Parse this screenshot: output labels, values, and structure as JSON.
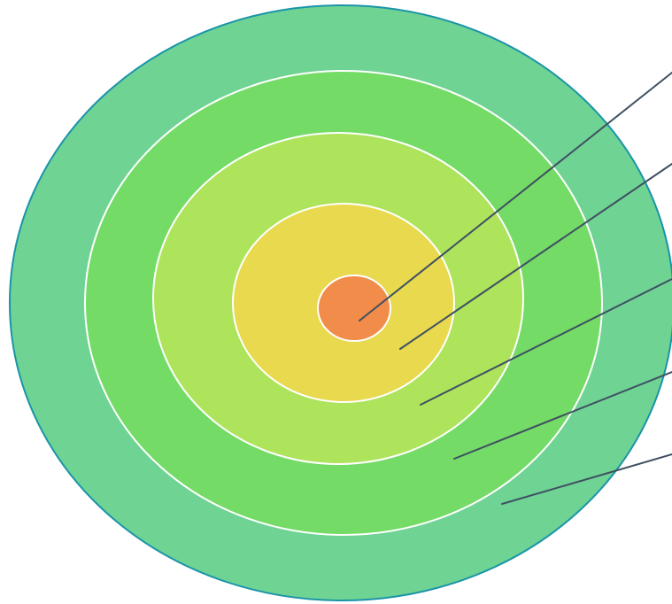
{
  "diagram": {
    "type": "concentric-target",
    "rings": [
      {
        "name": "outer-ring",
        "color": "#6FD394"
      },
      {
        "name": "ring-4",
        "color": "#73DB66"
      },
      {
        "name": "ring-3",
        "color": "#AEE35C"
      },
      {
        "name": "ring-2",
        "color": "#E8D94E"
      },
      {
        "name": "core",
        "color": "#F28C4A"
      }
    ],
    "outer_border_color": "#1B94A8",
    "ring_border_color": "#FFFFFF",
    "leader_line_color": "#3F5062",
    "leader_line_count": 5
  }
}
